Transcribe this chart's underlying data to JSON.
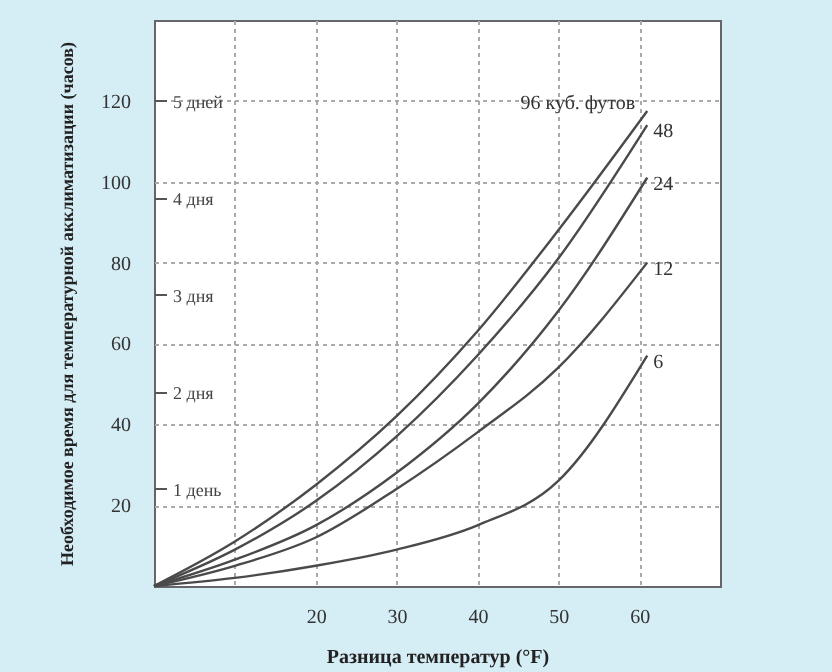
{
  "chart_data": {
    "type": "line",
    "xlabel": "Разница температур (°F)",
    "ylabel": "Необходимое время для температурной акклиматизации (часов)",
    "x": [
      0,
      10,
      20,
      30,
      40,
      50,
      61
    ],
    "series": [
      {
        "name": "96 куб. футов",
        "color": "#4a4a4a",
        "values": [
          0,
          11,
          25,
          42,
          63,
          88,
          117.5
        ]
      },
      {
        "name": "48",
        "color": "#4a4a4a",
        "values": [
          0,
          9,
          21,
          37,
          57,
          81,
          114
        ]
      },
      {
        "name": "24",
        "color": "#4a4a4a",
        "values": [
          0,
          6.5,
          15,
          28,
          45,
          68,
          101
        ]
      },
      {
        "name": "12",
        "color": "#4a4a4a",
        "values": [
          0,
          5,
          12,
          24,
          38,
          54,
          80
        ]
      },
      {
        "name": "6",
        "color": "#4a4a4a",
        "values": [
          0,
          2,
          5,
          9,
          15,
          26,
          57
        ]
      }
    ],
    "xlim": [
      0,
      70
    ],
    "xticks": [
      {
        "value": 10,
        "label": null
      },
      20,
      30,
      40,
      50,
      60
    ],
    "ylim": [
      0,
      140
    ],
    "yticks": [
      20,
      40,
      60,
      80,
      100,
      120
    ],
    "y2lim": [
      0,
      5.833
    ],
    "y2ticks": [
      {
        "value": 1,
        "label": "1 день"
      },
      {
        "value": 2,
        "label": "2 дня"
      },
      {
        "value": 3,
        "label": "3 дня"
      },
      {
        "value": 4,
        "label": "4 дня"
      },
      {
        "value": 5,
        "label": "5 дней"
      }
    ],
    "grid": true,
    "marker": "none",
    "line_style": "solid"
  }
}
